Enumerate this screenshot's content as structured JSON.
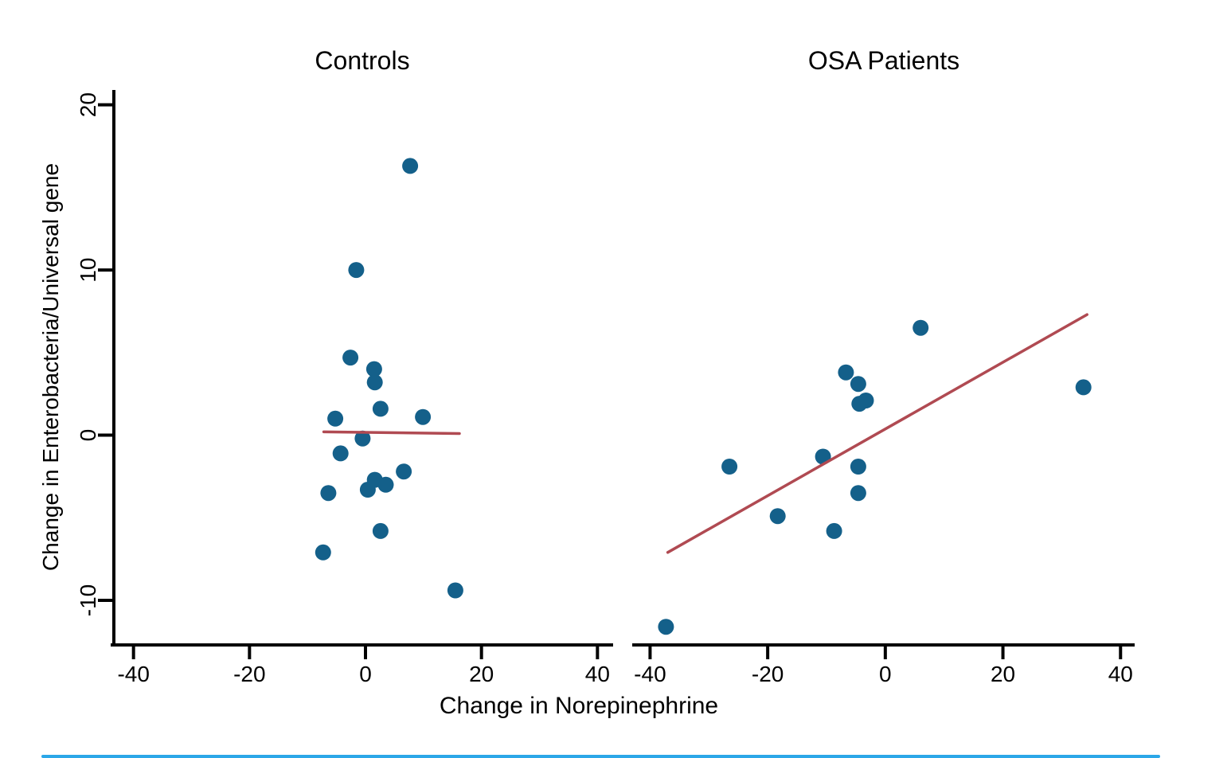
{
  "figure": {
    "xlabel": "Change in Norepinephrine",
    "ylabel": "Change in Enterobacteria/Universal gene",
    "colors": {
      "point": "#14608a",
      "fit_line": "#b04a52",
      "axis": "#000000",
      "accent_bar": "#2ba7e8"
    }
  },
  "chart_data": [
    {
      "type": "scatter",
      "title": "Controls",
      "xlabel": "Change in Norepinephrine",
      "ylabel": "Change in Enterobacteria/Universal gene",
      "xlim": [
        -43.8,
        42.7
      ],
      "ylim": [
        -12.7,
        20.9
      ],
      "x_ticks": [
        -40,
        -20,
        0,
        20,
        40
      ],
      "y_ticks": [
        -10,
        0,
        10,
        20
      ],
      "grid": false,
      "legend": "none",
      "points": [
        [
          7.7,
          16.3
        ],
        [
          -1.6,
          10.0
        ],
        [
          -2.6,
          4.7
        ],
        [
          1.5,
          4.0
        ],
        [
          1.6,
          3.2
        ],
        [
          2.6,
          1.6
        ],
        [
          -5.2,
          1.0
        ],
        [
          9.9,
          1.1
        ],
        [
          -0.5,
          -0.2
        ],
        [
          -4.3,
          -1.1
        ],
        [
          6.6,
          -2.2
        ],
        [
          1.6,
          -2.7
        ],
        [
          3.5,
          -3.0
        ],
        [
          0.4,
          -3.3
        ],
        [
          -6.4,
          -3.5
        ],
        [
          2.6,
          -5.8
        ],
        [
          -7.3,
          -7.1
        ],
        [
          15.5,
          -9.4
        ]
      ],
      "fit_line": {
        "x1": -7.2,
        "y1": 0.2,
        "x2": 16.2,
        "y2": 0.1
      }
    },
    {
      "type": "scatter",
      "title": "OSA Patients",
      "xlabel": "Change in Norepinephrine",
      "ylabel": "Change in Enterobacteria/Universal gene",
      "xlim": [
        -42.9,
        42.4
      ],
      "ylim": [
        -12.7,
        20.9
      ],
      "x_ticks": [
        -40,
        -20,
        0,
        20,
        40
      ],
      "y_ticks": [],
      "grid": false,
      "legend": "none",
      "points": [
        [
          6.0,
          6.5
        ],
        [
          -6.7,
          3.8
        ],
        [
          -4.6,
          3.1
        ],
        [
          -4.4,
          1.9
        ],
        [
          -3.3,
          2.1
        ],
        [
          -10.6,
          -1.3
        ],
        [
          -26.5,
          -1.9
        ],
        [
          -4.6,
          -1.9
        ],
        [
          -4.6,
          -3.5
        ],
        [
          -18.3,
          -4.9
        ],
        [
          -8.7,
          -5.8
        ],
        [
          33.7,
          2.9
        ],
        [
          -37.3,
          -11.6
        ]
      ],
      "fit_line": {
        "x1": -37.0,
        "y1": -7.1,
        "x2": 34.3,
        "y2": 7.3
      }
    }
  ]
}
